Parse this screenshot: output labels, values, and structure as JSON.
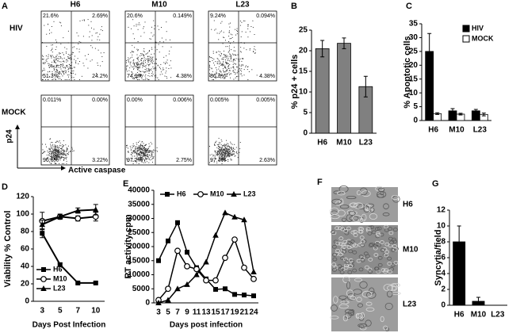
{
  "panels": {
    "A": {
      "label": "A",
      "columns": [
        "H6",
        "M10",
        "L23"
      ],
      "y_axis_label": "p24",
      "x_axis_label": "Active caspase",
      "rows": [
        {
          "label": "HIV",
          "quadrants": [
            {
              "ul": "21.6%",
              "ur": "2.69%",
              "ll": "51.3%",
              "lr": "24.2%"
            },
            {
              "ul": "20.6%",
              "ur": "0.149%",
              "ll": "74.9%",
              "lr": "4.38%"
            },
            {
              "ul": "9.24%",
              "ur": "0.094%",
              "ll": "86.3%",
              "lr": "4.38%"
            }
          ]
        },
        {
          "label": "MOCK",
          "quadrants": [
            {
              "ul": "0.011%",
              "ur": "0.00%",
              "ll": "96.6%",
              "lr": "3.22%"
            },
            {
              "ul": "0.00%",
              "ur": "0.006%",
              "ll": "97.2%",
              "lr": "2.75%"
            },
            {
              "ul": "0.005%",
              "ur": "0.005%",
              "ll": "97.4%",
              "lr": "2.63%"
            }
          ]
        }
      ]
    },
    "F": {
      "label": "F",
      "images": [
        "H6",
        "M10",
        "L23"
      ]
    }
  },
  "chart_data": [
    {
      "type": "bar",
      "label": "B",
      "ylabel": "% p24 + cells",
      "categories": [
        "H6",
        "M10",
        "L23"
      ],
      "series": [
        {
          "color": "#808080",
          "values": [
            20.5,
            21.8,
            11.3
          ],
          "errors": [
            2,
            1.3,
            2.5
          ]
        }
      ],
      "ylim": [
        0,
        25
      ],
      "yticks": [
        0,
        5,
        10,
        15,
        20,
        25
      ]
    },
    {
      "type": "bar",
      "label": "C",
      "ylabel": "% Apoptotic cells",
      "categories": [
        "H6",
        "M10",
        "L23"
      ],
      "series": [
        {
          "name": "HIV",
          "color": "#000000",
          "values": [
            25,
            3.5,
            3.5
          ],
          "errors": [
            6.5,
            0.8,
            0.5
          ]
        },
        {
          "name": "MOCK",
          "color": "#ffffff",
          "values": [
            2.5,
            2.3,
            2.2
          ],
          "errors": [
            0.3,
            0.3,
            0.5
          ]
        }
      ],
      "ylim": [
        0,
        35
      ],
      "yticks": [
        0,
        5,
        10,
        15,
        20,
        25,
        30,
        35
      ],
      "legend": "upper right"
    },
    {
      "type": "line",
      "label": "D",
      "ylabel": "Viability % Control",
      "xlabel": "Days Post Infection",
      "categories": [
        "3",
        "5",
        "7",
        "10"
      ],
      "series": [
        {
          "name": "H6",
          "color": "#000000",
          "marker": "square",
          "values": [
            78,
            42,
            21,
            21
          ],
          "errors": [
            5,
            2,
            1,
            1
          ]
        },
        {
          "name": "M10",
          "color": "#000000",
          "marker": "circle",
          "values": [
            92,
            97,
            95,
            97
          ],
          "errors": [
            10,
            3,
            3,
            5
          ]
        },
        {
          "name": "L23",
          "color": "#000000",
          "marker": "triangle",
          "values": [
            88,
            97,
            104,
            105
          ],
          "errors": [
            5,
            2,
            3,
            6
          ]
        }
      ],
      "ylim": [
        0,
        120
      ],
      "yticks": [
        0,
        20,
        40,
        60,
        80,
        100,
        120
      ],
      "legend": "lower left"
    },
    {
      "type": "line",
      "label": "E",
      "ylabel": "RT activity cpm",
      "xlabel": "Days post infection",
      "categories": [
        "3",
        "5",
        "7",
        "9",
        "11",
        "13",
        "15",
        "17",
        "19",
        "21",
        "24"
      ],
      "series": [
        {
          "name": "H6",
          "color": "#000000",
          "marker": "square",
          "values": [
            15000,
            22000,
            28500,
            18000,
            12500,
            8500,
            4800,
            5000,
            3000,
            2800,
            2500
          ]
        },
        {
          "name": "M10",
          "color": "#000000",
          "marker": "circle",
          "values": [
            1000,
            5000,
            18500,
            13000,
            12000,
            8000,
            8000,
            16000,
            22500,
            12500,
            8500
          ]
        },
        {
          "name": "L23",
          "color": "#000000",
          "marker": "triangle",
          "values": [
            0,
            1000,
            5000,
            6500,
            10000,
            14500,
            24000,
            32000,
            30500,
            29500,
            11000
          ]
        }
      ],
      "ylim": [
        0,
        40000
      ],
      "yticks": [
        0,
        5000,
        10000,
        15000,
        20000,
        25000,
        30000,
        35000,
        40000
      ],
      "legend": "upper center"
    },
    {
      "type": "bar",
      "label": "G",
      "ylabel": "Syncytia/field",
      "categories": [
        "H6",
        "M10",
        "L23"
      ],
      "series": [
        {
          "color": "#000000",
          "values": [
            8,
            0.5,
            0
          ],
          "errors": [
            2,
            0.5,
            0
          ]
        }
      ],
      "ylim": [
        0,
        12
      ],
      "yticks": [
        0,
        2,
        4,
        6,
        8,
        10,
        12
      ]
    }
  ]
}
